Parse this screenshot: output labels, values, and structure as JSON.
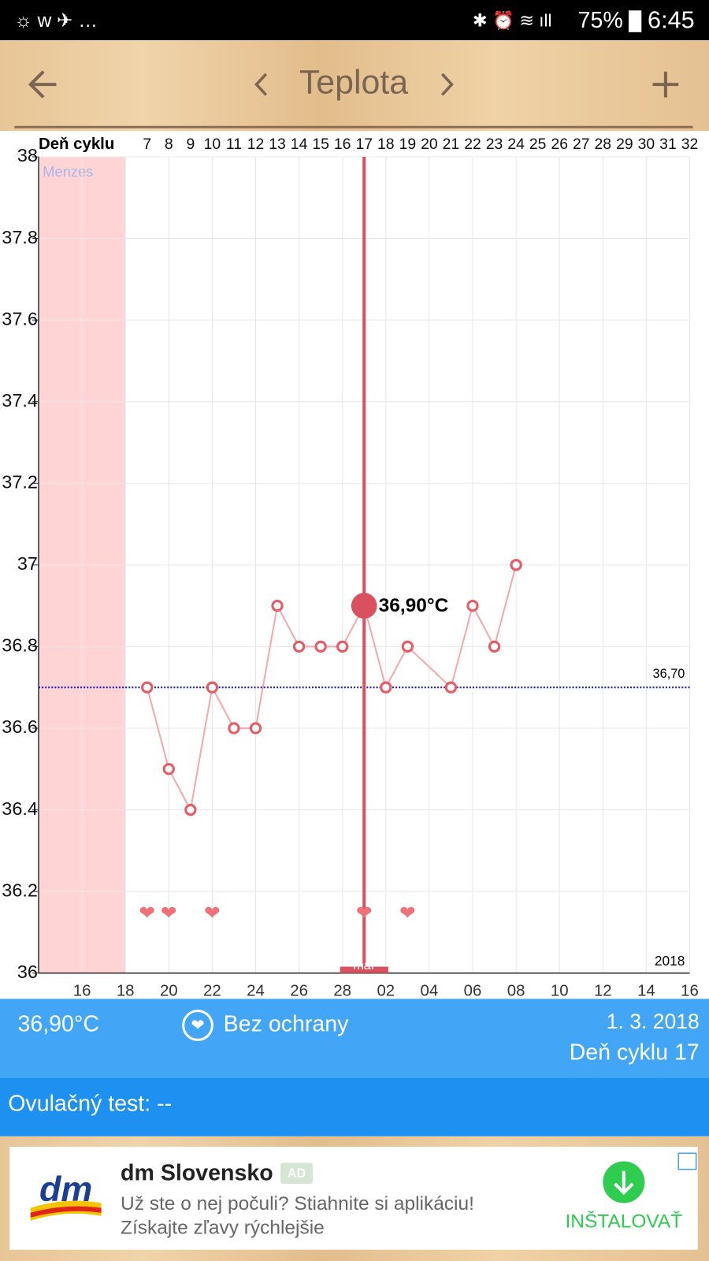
{
  "status_bar": {
    "battery": "75%",
    "time": "6:45"
  },
  "header": {
    "title": "Teplota"
  },
  "chart_data": {
    "type": "line",
    "x2_label": "Deň cyklu",
    "x": [
      7,
      8,
      9,
      10,
      11,
      12,
      13,
      14,
      15,
      16,
      17,
      18,
      19,
      21,
      22,
      23,
      24
    ],
    "series": [
      {
        "color": "#e85a64",
        "values": [
          36.7,
          36.5,
          36.4,
          36.7,
          36.6,
          36.6,
          36.9,
          36.8,
          36.8,
          36.8,
          36.9,
          36.7,
          36.8,
          36.7,
          36.9,
          36.8,
          37.0
        ]
      }
    ],
    "xlim": [
      2,
      32
    ],
    "xticks": [
      {
        "value": 4,
        "label": "16"
      },
      {
        "value": 6,
        "label": "18"
      },
      {
        "value": 8,
        "label": "20"
      },
      {
        "value": 10,
        "label": "22"
      },
      {
        "value": 12,
        "label": "24"
      },
      {
        "value": 14,
        "label": "26"
      },
      {
        "value": 16,
        "label": "28"
      },
      {
        "value": 18,
        "label": "02"
      },
      {
        "value": 20,
        "label": "04"
      },
      {
        "value": 22,
        "label": "06"
      },
      {
        "value": 24,
        "label": "08"
      },
      {
        "value": 26,
        "label": "10"
      },
      {
        "value": 28,
        "label": "12"
      },
      {
        "value": 30,
        "label": "14"
      },
      {
        "value": 32,
        "label": "16"
      }
    ],
    "x2ticks": [
      7,
      8,
      9,
      10,
      11,
      12,
      13,
      14,
      15,
      16,
      17,
      18,
      19,
      20,
      21,
      22,
      23,
      24,
      25,
      26,
      27,
      28,
      29,
      30,
      31,
      32
    ],
    "ylim": [
      36,
      38
    ],
    "yticks": [
      36,
      36.2,
      36.4,
      36.6,
      36.8,
      37,
      37.2,
      37.4,
      37.6,
      37.8,
      38
    ],
    "grid": true,
    "band": {
      "label": "Menzes",
      "range": [
        2,
        6
      ],
      "color": "#ffd4d4"
    },
    "hline": {
      "value": 36.7,
      "label": "36,70",
      "color": "#1c1ccc"
    },
    "selected": {
      "x": 17,
      "value": 36.9,
      "label": "36,90°C",
      "color": "#d9505e"
    },
    "hearts": {
      "x": [
        7,
        8,
        10,
        17,
        19
      ],
      "color": "#f07078"
    },
    "month_label": "mar",
    "year_label": "2018"
  },
  "info": {
    "temperature": "36,90°C",
    "protection": "Bez ochrany",
    "date": "1. 3. 2018",
    "cycle_day": "Deň cyklu 17"
  },
  "ovulation": {
    "text": "Ovulačný test: --"
  },
  "ad": {
    "logo": "dm",
    "brand": "dm Slovensko",
    "badge": "AD",
    "line1": "Už ste o nej počuli? Stiahnite si aplikáciu!",
    "line2": "Získajte zľavy rýchlejšie",
    "button": "INŠTALOVAŤ"
  }
}
